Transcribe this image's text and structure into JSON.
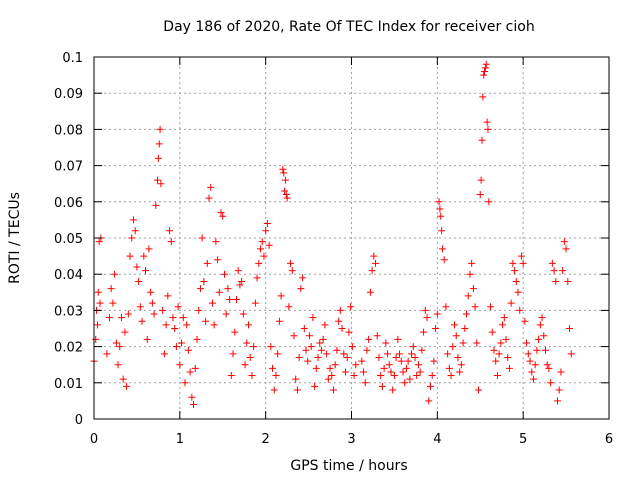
{
  "chart_data": {
    "type": "scatter",
    "title": "Day 186 of 2020, Rate Of TEC Index for receiver cioh",
    "xlabel": "GPS time / hours",
    "ylabel": "ROTI / TECUs",
    "xlim": [
      0,
      6
    ],
    "ylim": [
      0,
      0.1
    ],
    "xticks": [
      0,
      1,
      2,
      3,
      4,
      5,
      6
    ],
    "yticks": [
      0,
      0.01,
      0.02,
      0.03,
      0.04,
      0.05,
      0.06,
      0.07,
      0.08,
      0.09,
      0.1
    ],
    "xtick_labels": [
      "0",
      "1",
      "2",
      "3",
      "4",
      "5",
      "6"
    ],
    "ytick_labels": [
      "0",
      "0.01",
      "0.02",
      "0.03",
      "0.04",
      "0.05",
      "0.06",
      "0.07",
      "0.08",
      "0.09",
      "0.1"
    ],
    "grid": true,
    "marker": "+",
    "color": "#ff0000",
    "series": [
      {
        "name": "ROTI",
        "points": [
          [
            0.0,
            0.016
          ],
          [
            0.02,
            0.022
          ],
          [
            0.03,
            0.03
          ],
          [
            0.04,
            0.026
          ],
          [
            0.05,
            0.035
          ],
          [
            0.06,
            0.049
          ],
          [
            0.07,
            0.032
          ],
          [
            0.08,
            0.05
          ],
          [
            0.15,
            0.018
          ],
          [
            0.18,
            0.028
          ],
          [
            0.2,
            0.036
          ],
          [
            0.22,
            0.032
          ],
          [
            0.24,
            0.04
          ],
          [
            0.26,
            0.021
          ],
          [
            0.28,
            0.015
          ],
          [
            0.3,
            0.02
          ],
          [
            0.32,
            0.028
          ],
          [
            0.34,
            0.011
          ],
          [
            0.36,
            0.024
          ],
          [
            0.38,
            0.009
          ],
          [
            0.4,
            0.029
          ],
          [
            0.42,
            0.045
          ],
          [
            0.44,
            0.05
          ],
          [
            0.46,
            0.055
          ],
          [
            0.48,
            0.052
          ],
          [
            0.5,
            0.042
          ],
          [
            0.52,
            0.038
          ],
          [
            0.54,
            0.031
          ],
          [
            0.56,
            0.027
          ],
          [
            0.58,
            0.045
          ],
          [
            0.6,
            0.041
          ],
          [
            0.62,
            0.022
          ],
          [
            0.64,
            0.047
          ],
          [
            0.66,
            0.035
          ],
          [
            0.68,
            0.032
          ],
          [
            0.7,
            0.029
          ],
          [
            0.72,
            0.059
          ],
          [
            0.74,
            0.066
          ],
          [
            0.75,
            0.072
          ],
          [
            0.76,
            0.076
          ],
          [
            0.77,
            0.08
          ],
          [
            0.78,
            0.065
          ],
          [
            0.8,
            0.03
          ],
          [
            0.82,
            0.018
          ],
          [
            0.84,
            0.026
          ],
          [
            0.86,
            0.034
          ],
          [
            0.88,
            0.052
          ],
          [
            0.9,
            0.049
          ],
          [
            0.92,
            0.028
          ],
          [
            0.94,
            0.025
          ],
          [
            0.96,
            0.02
          ],
          [
            0.98,
            0.031
          ],
          [
            1.0,
            0.015
          ],
          [
            1.02,
            0.021
          ],
          [
            1.04,
            0.028
          ],
          [
            1.06,
            0.01
          ],
          [
            1.08,
            0.026
          ],
          [
            1.1,
            0.019
          ],
          [
            1.12,
            0.013
          ],
          [
            1.14,
            0.006
          ],
          [
            1.16,
            0.004
          ],
          [
            1.18,
            0.014
          ],
          [
            1.2,
            0.022
          ],
          [
            1.22,
            0.03
          ],
          [
            1.24,
            0.036
          ],
          [
            1.26,
            0.05
          ],
          [
            1.28,
            0.038
          ],
          [
            1.3,
            0.027
          ],
          [
            1.32,
            0.043
          ],
          [
            1.34,
            0.061
          ],
          [
            1.36,
            0.064
          ],
          [
            1.38,
            0.032
          ],
          [
            1.4,
            0.026
          ],
          [
            1.42,
            0.049
          ],
          [
            1.44,
            0.044
          ],
          [
            1.46,
            0.035
          ],
          [
            1.48,
            0.057
          ],
          [
            1.5,
            0.056
          ],
          [
            1.52,
            0.04
          ],
          [
            1.54,
            0.029
          ],
          [
            1.56,
            0.036
          ],
          [
            1.58,
            0.033
          ],
          [
            1.6,
            0.012
          ],
          [
            1.62,
            0.018
          ],
          [
            1.64,
            0.024
          ],
          [
            1.66,
            0.033
          ],
          [
            1.68,
            0.041
          ],
          [
            1.7,
            0.037
          ],
          [
            1.72,
            0.038
          ],
          [
            1.74,
            0.029
          ],
          [
            1.76,
            0.015
          ],
          [
            1.78,
            0.021
          ],
          [
            1.8,
            0.026
          ],
          [
            1.82,
            0.017
          ],
          [
            1.84,
            0.012
          ],
          [
            1.86,
            0.02
          ],
          [
            1.88,
            0.032
          ],
          [
            1.9,
            0.039
          ],
          [
            1.92,
            0.043
          ],
          [
            1.94,
            0.047
          ],
          [
            1.96,
            0.049
          ],
          [
            1.98,
            0.045
          ],
          [
            2.0,
            0.052
          ],
          [
            2.02,
            0.054
          ],
          [
            2.04,
            0.048
          ],
          [
            2.06,
            0.02
          ],
          [
            2.08,
            0.014
          ],
          [
            2.1,
            0.008
          ],
          [
            2.12,
            0.012
          ],
          [
            2.14,
            0.018
          ],
          [
            2.16,
            0.027
          ],
          [
            2.18,
            0.034
          ],
          [
            2.2,
            0.069
          ],
          [
            2.21,
            0.068
          ],
          [
            2.22,
            0.063
          ],
          [
            2.23,
            0.066
          ],
          [
            2.24,
            0.062
          ],
          [
            2.25,
            0.061
          ],
          [
            2.27,
            0.031
          ],
          [
            2.29,
            0.043
          ],
          [
            2.31,
            0.041
          ],
          [
            2.33,
            0.023
          ],
          [
            2.35,
            0.011
          ],
          [
            2.37,
            0.008
          ],
          [
            2.39,
            0.017
          ],
          [
            2.41,
            0.036
          ],
          [
            2.43,
            0.039
          ],
          [
            2.45,
            0.025
          ],
          [
            2.47,
            0.019
          ],
          [
            2.49,
            0.016
          ],
          [
            2.51,
            0.023
          ],
          [
            2.53,
            0.02
          ],
          [
            2.55,
            0.028
          ],
          [
            2.57,
            0.009
          ],
          [
            2.59,
            0.014
          ],
          [
            2.61,
            0.017
          ],
          [
            2.63,
            0.021
          ],
          [
            2.65,
            0.019
          ],
          [
            2.67,
            0.022
          ],
          [
            2.69,
            0.026
          ],
          [
            2.71,
            0.018
          ],
          [
            2.73,
            0.011
          ],
          [
            2.75,
            0.014
          ],
          [
            2.77,
            0.012
          ],
          [
            2.79,
            0.008
          ],
          [
            2.81,
            0.015
          ],
          [
            2.83,
            0.019
          ],
          [
            2.85,
            0.027
          ],
          [
            2.87,
            0.03
          ],
          [
            2.89,
            0.025
          ],
          [
            2.91,
            0.018
          ],
          [
            2.93,
            0.013
          ],
          [
            2.95,
            0.017
          ],
          [
            2.97,
            0.024
          ],
          [
            2.99,
            0.031
          ],
          [
            3.01,
            0.02
          ],
          [
            3.03,
            0.012
          ],
          [
            3.05,
            0.015
          ],
          [
            3.12,
            0.016
          ],
          [
            3.14,
            0.013
          ],
          [
            3.16,
            0.01
          ],
          [
            3.18,
            0.019
          ],
          [
            3.2,
            0.022
          ],
          [
            3.22,
            0.035
          ],
          [
            3.24,
            0.041
          ],
          [
            3.26,
            0.045
          ],
          [
            3.28,
            0.043
          ],
          [
            3.3,
            0.023
          ],
          [
            3.32,
            0.017
          ],
          [
            3.34,
            0.012
          ],
          [
            3.36,
            0.009
          ],
          [
            3.38,
            0.014
          ],
          [
            3.4,
            0.021
          ],
          [
            3.42,
            0.018
          ],
          [
            3.44,
            0.015
          ],
          [
            3.46,
            0.013
          ],
          [
            3.48,
            0.008
          ],
          [
            3.5,
            0.012
          ],
          [
            3.52,
            0.017
          ],
          [
            3.54,
            0.022
          ],
          [
            3.56,
            0.018
          ],
          [
            3.58,
            0.016
          ],
          [
            3.6,
            0.013
          ],
          [
            3.62,
            0.01
          ],
          [
            3.64,
            0.014
          ],
          [
            3.66,
            0.016
          ],
          [
            3.68,
            0.011
          ],
          [
            3.7,
            0.018
          ],
          [
            3.72,
            0.02
          ],
          [
            3.74,
            0.017
          ],
          [
            3.76,
            0.012
          ],
          [
            3.78,
            0.015
          ],
          [
            3.8,
            0.013
          ],
          [
            3.82,
            0.019
          ],
          [
            3.84,
            0.024
          ],
          [
            3.86,
            0.03
          ],
          [
            3.88,
            0.028
          ],
          [
            3.9,
            0.005
          ],
          [
            3.92,
            0.009
          ],
          [
            3.94,
            0.012
          ],
          [
            3.96,
            0.016
          ],
          [
            3.98,
            0.025
          ],
          [
            4.0,
            0.029
          ],
          [
            4.02,
            0.06
          ],
          [
            4.03,
            0.058
          ],
          [
            4.04,
            0.056
          ],
          [
            4.05,
            0.052
          ],
          [
            4.06,
            0.047
          ],
          [
            4.08,
            0.044
          ],
          [
            4.1,
            0.031
          ],
          [
            4.12,
            0.018
          ],
          [
            4.14,
            0.014
          ],
          [
            4.16,
            0.012
          ],
          [
            4.18,
            0.02
          ],
          [
            4.2,
            0.026
          ],
          [
            4.22,
            0.023
          ],
          [
            4.24,
            0.017
          ],
          [
            4.26,
            0.013
          ],
          [
            4.28,
            0.015
          ],
          [
            4.3,
            0.021
          ],
          [
            4.32,
            0.025
          ],
          [
            4.34,
            0.029
          ],
          [
            4.36,
            0.034
          ],
          [
            4.38,
            0.04
          ],
          [
            4.4,
            0.043
          ],
          [
            4.42,
            0.036
          ],
          [
            4.44,
            0.031
          ],
          [
            4.46,
            0.021
          ],
          [
            4.48,
            0.008
          ],
          [
            4.5,
            0.062
          ],
          [
            4.51,
            0.066
          ],
          [
            4.52,
            0.077
          ],
          [
            4.53,
            0.089
          ],
          [
            4.54,
            0.095
          ],
          [
            4.55,
            0.096
          ],
          [
            4.56,
            0.097
          ],
          [
            4.57,
            0.098
          ],
          [
            4.58,
            0.082
          ],
          [
            4.59,
            0.08
          ],
          [
            4.6,
            0.06
          ],
          [
            4.62,
            0.031
          ],
          [
            4.64,
            0.024
          ],
          [
            4.66,
            0.019
          ],
          [
            4.68,
            0.016
          ],
          [
            4.7,
            0.012
          ],
          [
            4.72,
            0.018
          ],
          [
            4.74,
            0.021
          ],
          [
            4.76,
            0.026
          ],
          [
            4.78,
            0.028
          ],
          [
            4.8,
            0.022
          ],
          [
            4.82,
            0.017
          ],
          [
            4.84,
            0.014
          ],
          [
            4.86,
            0.032
          ],
          [
            4.88,
            0.043
          ],
          [
            4.9,
            0.041
          ],
          [
            4.92,
            0.038
          ],
          [
            4.94,
            0.035
          ],
          [
            4.96,
            0.03
          ],
          [
            4.98,
            0.045
          ],
          [
            5.0,
            0.043
          ],
          [
            5.02,
            0.027
          ],
          [
            5.04,
            0.021
          ],
          [
            5.06,
            0.018
          ],
          [
            5.08,
            0.016
          ],
          [
            5.1,
            0.013
          ],
          [
            5.12,
            0.011
          ],
          [
            5.14,
            0.015
          ],
          [
            5.16,
            0.019
          ],
          [
            5.18,
            0.022
          ],
          [
            5.2,
            0.026
          ],
          [
            5.22,
            0.028
          ],
          [
            5.24,
            0.023
          ],
          [
            5.26,
            0.019
          ],
          [
            5.28,
            0.015
          ],
          [
            5.3,
            0.014
          ],
          [
            5.32,
            0.01
          ],
          [
            5.34,
            0.043
          ],
          [
            5.36,
            0.041
          ],
          [
            5.38,
            0.038
          ],
          [
            5.4,
            0.005
          ],
          [
            5.42,
            0.008
          ],
          [
            5.44,
            0.013
          ],
          [
            5.46,
            0.041
          ],
          [
            5.48,
            0.049
          ],
          [
            5.5,
            0.047
          ],
          [
            5.52,
            0.038
          ],
          [
            5.54,
            0.025
          ],
          [
            5.56,
            0.018
          ]
        ]
      }
    ]
  }
}
